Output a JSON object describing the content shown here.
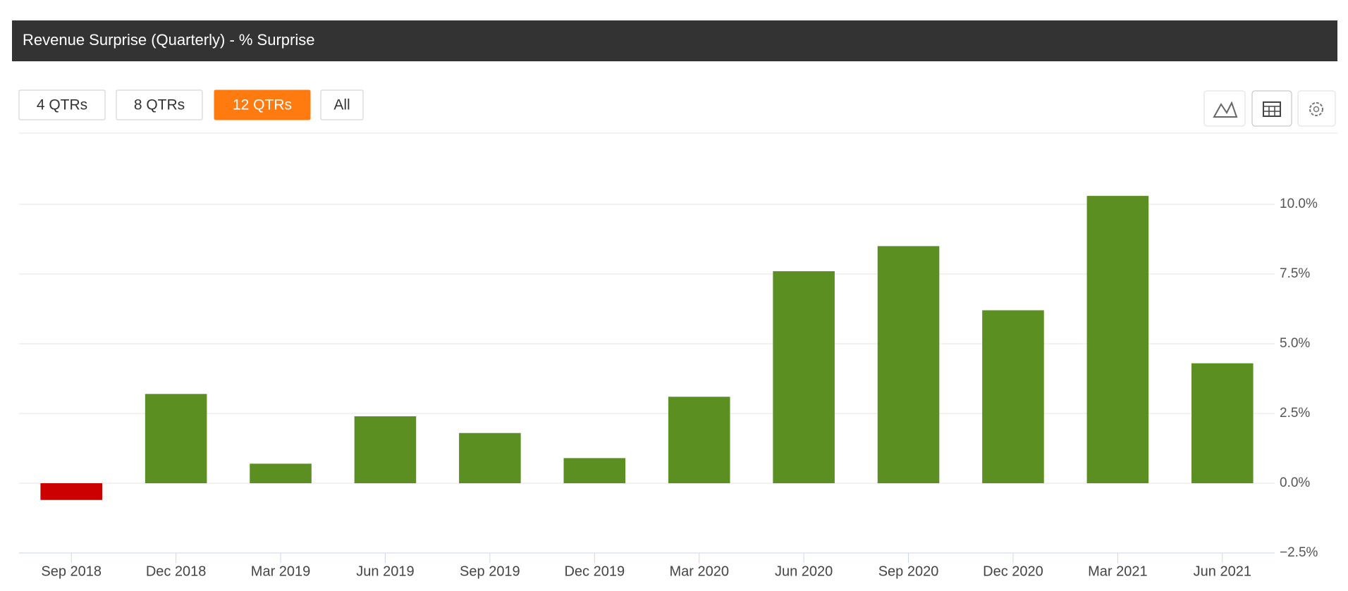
{
  "header": {
    "title": "Revenue Surprise (Quarterly) - % Surprise"
  },
  "controls": {
    "ranges": [
      "4 QTRs",
      "8 QTRs",
      "12 QTRs",
      "All"
    ],
    "selected": 2
  },
  "chart_data": {
    "type": "bar",
    "categories": [
      "Sep 2018",
      "Dec 2018",
      "Mar 2019",
      "Jun 2019",
      "Sep 2019",
      "Dec 2019",
      "Mar 2020",
      "Jun 2020",
      "Sep 2020",
      "Dec 2020",
      "Mar 2021",
      "Jun 2021"
    ],
    "values": [
      -0.6,
      3.2,
      0.7,
      2.4,
      1.8,
      0.9,
      3.1,
      7.6,
      8.5,
      6.2,
      10.3,
      4.3
    ],
    "positive_color": "#5b8f22",
    "negative_color": "#cc0000",
    "ylim": [
      -2.5,
      12.5
    ],
    "yticks": [
      {
        "value": -2.5,
        "label": "−2.5%"
      },
      {
        "value": 0,
        "label": "0.0%"
      },
      {
        "value": 2.5,
        "label": "2.5%"
      },
      {
        "value": 5,
        "label": "5.0%"
      },
      {
        "value": 7.5,
        "label": "7.5%"
      },
      {
        "value": 10,
        "label": "10.0%"
      }
    ],
    "grid": true
  }
}
